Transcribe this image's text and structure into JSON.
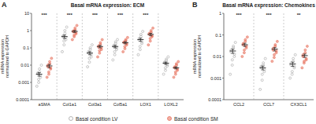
{
  "chart_data": [
    {
      "type": "strip",
      "panel_label": "A",
      "title": "Basal mRNA expression: ECM",
      "ylabel": [
        "mRNA expression",
        "normalized to GAPDH"
      ],
      "categories": [
        "aSMA",
        "Col1a1",
        "Col3a1",
        "Col5a1",
        "LOX1",
        "LOXL2"
      ],
      "log": "y",
      "ylim": [
        0.0001,
        10
      ],
      "yticks": [
        0.0001,
        0.001,
        0.01,
        0.1,
        1,
        10
      ],
      "legend": "bottom",
      "marker": "circle",
      "significance": [
        "***",
        "***",
        "***",
        "***",
        "***",
        null
      ],
      "series": [
        {
          "name": "Basal condition LV",
          "color": "#a3a3a3",
          "points": [
            [
              0.0006,
              0.001,
              0.0015,
              0.002,
              0.0025,
              0.003,
              0.0035,
              0.004,
              0.006,
              0.01
            ],
            [
              0.06,
              0.15,
              0.25,
              0.3,
              0.4,
              0.45,
              0.5,
              0.7,
              1.0,
              1.6
            ],
            [
              0.008,
              0.015,
              0.025,
              0.03,
              0.04,
              0.05,
              0.06,
              0.08,
              0.1,
              0.15
            ],
            [
              0.02,
              0.04,
              0.06,
              0.08,
              0.1,
              0.12,
              0.14,
              0.18,
              0.22,
              0.3
            ],
            [
              0.04,
              0.08,
              0.12,
              0.18,
              0.22,
              0.28,
              0.35,
              0.45,
              0.6,
              0.9
            ],
            [
              0.003,
              0.005,
              0.007,
              0.009,
              0.011,
              0.013,
              0.015,
              0.018,
              0.022,
              0.03
            ]
          ],
          "values": [
            0.003,
            0.45,
            0.05,
            0.12,
            0.3,
            0.013
          ],
          "errors": [
            0.0007,
            0.1,
            0.01,
            0.02,
            0.06,
            0.002
          ]
        },
        {
          "name": "Basal condition SM",
          "color": "#e8735f",
          "points": [
            [
              0.002,
              0.003,
              0.004,
              0.006,
              0.007,
              0.008,
              0.01,
              0.012,
              0.016,
              0.025
            ],
            [
              0.3,
              0.45,
              0.55,
              0.65,
              0.75,
              0.85,
              0.95,
              1.1,
              1.4,
              2.0
            ],
            [
              0.03,
              0.05,
              0.07,
              0.08,
              0.1,
              0.11,
              0.13,
              0.16,
              0.2,
              0.3
            ],
            [
              0.06,
              0.09,
              0.12,
              0.15,
              0.18,
              0.2,
              0.22,
              0.26,
              0.3,
              0.4
            ],
            [
              0.15,
              0.25,
              0.35,
              0.45,
              0.5,
              0.6,
              0.7,
              0.8,
              1.0,
              1.4
            ],
            [
              0.002,
              0.003,
              0.004,
              0.005,
              0.006,
              0.007,
              0.008,
              0.01,
              0.012,
              0.016
            ]
          ],
          "values": [
            0.009,
            0.9,
            0.12,
            0.2,
            0.6,
            0.007
          ],
          "errors": [
            0.002,
            0.12,
            0.02,
            0.03,
            0.1,
            0.001
          ]
        }
      ]
    },
    {
      "type": "strip",
      "panel_label": "B",
      "title": "Basal mRNA expression: Chemokines",
      "ylabel": [
        "mRNA expression",
        "normalized to GAPDH"
      ],
      "categories": [
        "CCL2",
        "CCL7",
        "CX3CL1"
      ],
      "log": "y",
      "ylim": [
        0.0001,
        1
      ],
      "yticks": [
        0.0001,
        0.001,
        0.01,
        0.1,
        1
      ],
      "marker": "circle",
      "significance": [
        "***",
        "***",
        "**"
      ],
      "series": [
        {
          "color": "#a3a3a3",
          "points": [
            [
              0.0015,
              0.004,
              0.007,
              0.01,
              0.013,
              0.016,
              0.02,
              0.025,
              0.03,
              0.045
            ],
            [
              0.0003,
              0.0008,
              0.0015,
              0.002,
              0.0025,
              0.003,
              0.0035,
              0.004,
              0.005,
              0.008
            ],
            [
              0.001,
              0.0015,
              0.002,
              0.003,
              0.0035,
              0.004,
              0.005,
              0.006,
              0.008,
              0.012
            ]
          ],
          "values": [
            0.018,
            0.003,
            0.0045
          ],
          "errors": [
            0.004,
            0.0006,
            0.001
          ]
        },
        {
          "color": "#e8735f",
          "points": [
            [
              0.01,
              0.015,
              0.02,
              0.025,
              0.03,
              0.035,
              0.04,
              0.05,
              0.06,
              0.08
            ],
            [
              0.006,
              0.009,
              0.012,
              0.015,
              0.018,
              0.02,
              0.024,
              0.03,
              0.035,
              0.05
            ],
            [
              0.003,
              0.005,
              0.006,
              0.007,
              0.008,
              0.01,
              0.012,
              0.015,
              0.02,
              0.03
            ]
          ],
          "values": [
            0.035,
            0.022,
            0.011
          ],
          "errors": [
            0.006,
            0.004,
            0.002
          ]
        }
      ]
    }
  ]
}
